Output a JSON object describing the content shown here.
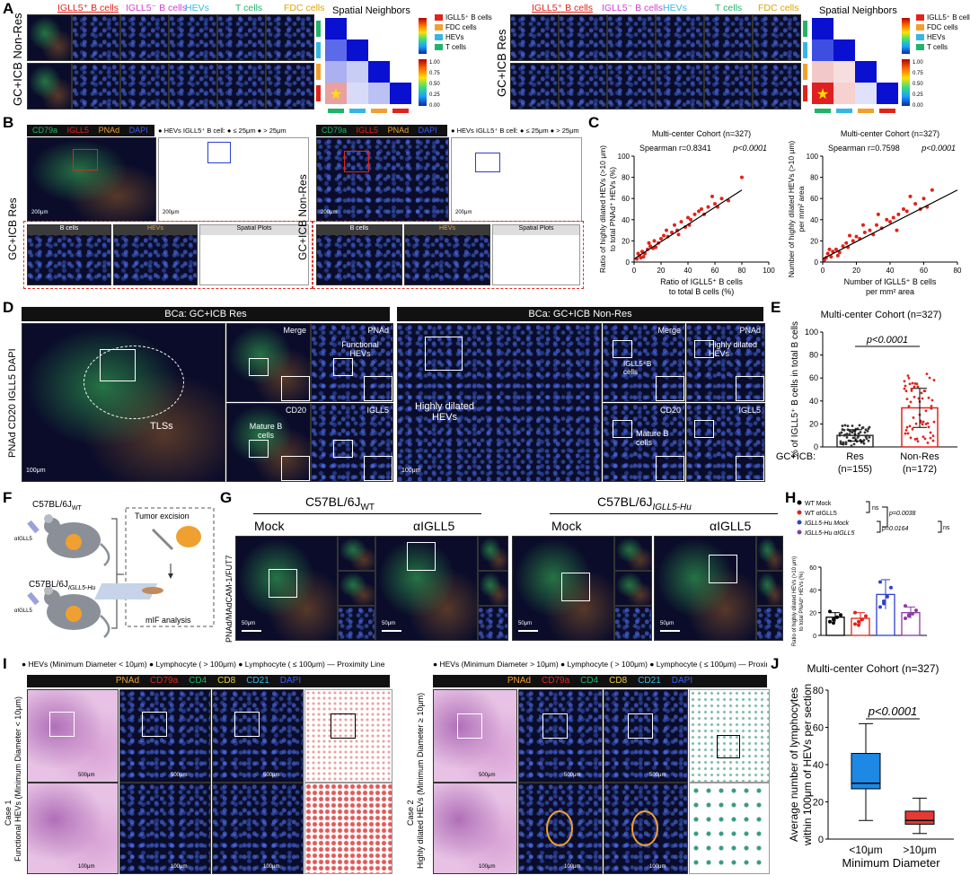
{
  "panels": {
    "A": {
      "label": "A",
      "row_label_left": "GC+ICB Non-Res",
      "row_label_right": "GC+ICB Res",
      "headers": [
        "IGLL5⁺ B cells",
        "IGLL5⁻ B cells",
        "HEVs",
        "T cells",
        "FDC cells"
      ],
      "header_colors": [
        "#e2231a",
        "#d63bd1",
        "#35b6e6",
        "#21b36a",
        "#e0a500"
      ],
      "heatmap_title": "Spatial Neighbors",
      "legend_left": [
        "IGLL5⁺ B cells",
        "FDC cells",
        "HEVs",
        "T cells"
      ],
      "legend_right": [
        "IGLL5⁺ B cells",
        "FDC cells",
        "HEVs",
        "T cells"
      ],
      "legend_colors": [
        "#e2231a",
        "#f0a030",
        "#35b6e6",
        "#21b36a"
      ],
      "scale_ticks": [
        "1.00",
        "0.75",
        "0.50",
        "0.25",
        "0.00"
      ]
    },
    "B": {
      "label": "B",
      "row_label_left": "GC+ICB Res",
      "row_label_right": "GC+ICB Non-Res",
      "markers": [
        "CD79a",
        "IGLL5",
        "PNAd",
        "DAPI"
      ],
      "marker_colors": [
        "#21b36a",
        "#e2231a",
        "#f0a030",
        "#3a5bff"
      ],
      "spatial_legend": "● HEVs   IGLL5⁺ B cell: ● ≤ 25μm ● > 25μm",
      "scale_big": "200μm",
      "sub_labels": [
        "B cells",
        "HEVs",
        "Spatial Plots"
      ],
      "scale_small": "50μm"
    },
    "C": {
      "label": "C",
      "plot1": {
        "title": "Multi-center Cohort (n=327)",
        "stat": "Spearman r=0.8341",
        "p": "p<0.0001",
        "ylabel_lines": [
          "Ratio of highly dilated HEVs (>10 μm)",
          "to total PNAd⁺ HEVs (%)"
        ],
        "xlabel_lines": [
          "Ratio of IGLL5⁺ B cells",
          "to total B cells (%)"
        ],
        "xticks": [
          "0",
          "20",
          "40",
          "60",
          "80",
          "100"
        ],
        "yticks": [
          "0",
          "20",
          "40",
          "60",
          "80",
          "100"
        ]
      },
      "plot2": {
        "title": "Multi-center Cohort (n=327)",
        "stat": "Spearman r=0.7598",
        "p": "p<0.0001",
        "ylabel_lines": [
          "Number of highly dilated HEVs (>10 μm)",
          "per mm² area"
        ],
        "xlabel_lines": [
          "Number of IGLL5⁺ B cells",
          "per mm² area"
        ],
        "xticks": [
          "0",
          "20",
          "40",
          "60",
          "80"
        ],
        "yticks": [
          "0",
          "20",
          "40",
          "60",
          "80",
          "100"
        ]
      }
    },
    "D": {
      "label": "D",
      "left_title": "BCa: GC+ICB Res",
      "right_title": "BCa: GC+ICB Non-Res",
      "side_label": "PNAd CD20 IGLL5 DAPI",
      "tls": "TLSs",
      "hevs": "Highly dilated HEVs",
      "res_labels": [
        "Merge",
        "PNAd",
        "Functional HEVs",
        "CD20",
        "IGLL5",
        "Mature B cells"
      ],
      "nonres_labels": [
        "Merge",
        "PNAd",
        "Highly dilated HEVs",
        "IGLL5⁺B cells",
        "CD20",
        "IGLL5",
        "Mature B cells"
      ],
      "scale": "100μm"
    },
    "E": {
      "label": "E",
      "title": "Multi-center Cohort (n=327)",
      "p": "p<0.0001",
      "ylabel": "% of IGLL5⁺ B cells in total B cells",
      "yticks": [
        "0",
        "20",
        "40",
        "60",
        "80",
        "100"
      ],
      "prefix": "GC+ICB:",
      "groups": [
        "Res",
        "Non-Res"
      ],
      "ns": [
        "(n=155)",
        "(n=172)"
      ]
    },
    "F": {
      "label": "F",
      "mouse1": "C57BL/6J",
      "mouse1_sub": "WT",
      "mouse2": "C57BL/6J",
      "mouse2_sub": "IGLL5-Hu",
      "drug": "αIGLL5",
      "step1": "Tumor excision",
      "step2": "mIF analysis"
    },
    "G": {
      "label": "G",
      "strain1": "C57BL/6J",
      "strain1_sub": "WT",
      "strain2": "C57BL/6J",
      "strain2_sub": "IGLL5-Hu",
      "conds": [
        "Mock",
        "αIGLL5",
        "Mock",
        "αIGLL5"
      ],
      "side_label": "PNAd/MAdCAM-1/FUT7",
      "scale": "50μm"
    },
    "H": {
      "label": "H",
      "legend": [
        "WT Mock",
        "WT αIGLL5",
        "IGLL5-Hu Mock",
        "IGLL5-Hu αIGLL5"
      ],
      "legend_colors": [
        "#000000",
        "#e2231a",
        "#3040d0",
        "#8a3aa8"
      ],
      "p1": "p=0.0038",
      "p2": "p=0.0164",
      "ns": "ns",
      "ylabel_lines": [
        "Ratio of highly dilated HEVs (>10 μm)",
        "to total PNAd⁺ HEVs (%)"
      ],
      "yticks": [
        "0",
        "20",
        "40",
        "60"
      ]
    },
    "I": {
      "label": "I",
      "legend_left": "● HEVs (Minimum Diameter < 10μm) ● Lymphocyte ( > 100μm) ● Lymphocyte ( ≤ 100μm)  — Proximity Line",
      "legend_right": "● HEVs (Minimum Diameter > 10μm) ● Lymphocyte ( > 100μm) ● Lymphocyte ( ≤ 100μm)  — Proximity Line",
      "markers": [
        "PNAd",
        "CD79a",
        "CD4",
        "CD8",
        "CD21",
        "DAPI"
      ],
      "marker_colors": [
        "#f0a030",
        "#e2231a",
        "#21b36a",
        "#e8d040",
        "#35b6e6",
        "#3a5bff"
      ],
      "case1": "Case 1",
      "case1_sub": "Functional HEVs (Minimum Diameter < 10μm)",
      "case2": "Case 2",
      "case2_sub": "Highly dilated HEVs (Minimum Diameter ≥ 10μm)",
      "scale_big": "500μm",
      "scale_small": "100μm"
    },
    "J": {
      "label": "J",
      "title": "Multi-center Cohort (n=327)",
      "p": "p<0.0001",
      "ylabel_lines": [
        "Average number of lymphocytes",
        "within 100μm of HEVs per section"
      ],
      "yticks": [
        "0",
        "20",
        "40",
        "60",
        "80"
      ],
      "categories": [
        "<10μm",
        ">10μm"
      ],
      "xlabel": "Minimum Diameter"
    }
  },
  "chart_data": [
    {
      "type": "scatter",
      "title": "Multi-center Cohort (n=327)",
      "xlabel": "Ratio of IGLL5⁺ B cells to total B cells (%)",
      "ylabel": "Ratio of highly dilated HEVs (>10 μm) to total PNAd⁺ HEVs (%)",
      "xlim": [
        0,
        100
      ],
      "ylim": [
        0,
        100
      ],
      "annotation": "Spearman r=0.8341 p<0.0001",
      "x": [
        2,
        4,
        5,
        6,
        8,
        10,
        12,
        14,
        15,
        18,
        20,
        22,
        25,
        28,
        30,
        32,
        35,
        38,
        40,
        42,
        45,
        48,
        50,
        55,
        60,
        65,
        70,
        80,
        3,
        7,
        11,
        16,
        24,
        33,
        41,
        52,
        58,
        62
      ],
      "y": [
        3,
        6,
        4,
        10,
        8,
        12,
        15,
        13,
        20,
        18,
        22,
        25,
        24,
        28,
        35,
        30,
        38,
        33,
        42,
        40,
        45,
        48,
        50,
        52,
        55,
        60,
        58,
        80,
        8,
        5,
        18,
        14,
        30,
        26,
        35,
        45,
        62,
        52
      ],
      "fit": {
        "x": [
          0,
          80
        ],
        "y": [
          3,
          68
        ]
      }
    },
    {
      "type": "scatter",
      "title": "Multi-center Cohort (n=327)",
      "xlabel": "Number of IGLL5⁺ B cells per mm² area",
      "ylabel": "Number of highly dilated HEVs (>10 μm) per mm² area",
      "xlim": [
        0,
        80
      ],
      "ylim": [
        0,
        100
      ],
      "annotation": "Spearman r=0.7598 p<0.0001",
      "x": [
        1,
        2,
        3,
        5,
        6,
        8,
        10,
        12,
        14,
        15,
        18,
        20,
        22,
        25,
        28,
        30,
        32,
        35,
        38,
        40,
        42,
        45,
        48,
        50,
        55,
        60,
        62,
        65,
        4,
        9,
        16,
        24,
        33,
        44,
        52,
        58
      ],
      "y": [
        2,
        4,
        8,
        5,
        10,
        12,
        9,
        15,
        18,
        14,
        20,
        24,
        22,
        28,
        30,
        26,
        35,
        32,
        40,
        38,
        42,
        45,
        50,
        48,
        55,
        60,
        52,
        68,
        12,
        6,
        25,
        35,
        45,
        30,
        62,
        50
      ],
      "fit": {
        "x": [
          0,
          80
        ],
        "y": [
          3,
          68
        ]
      }
    },
    {
      "type": "bar",
      "title": "Multi-center Cohort (n=327)",
      "categories": [
        "Res (n=155)",
        "Non-Res (n=172)"
      ],
      "values": [
        10,
        34
      ],
      "errors": [
        5,
        17
      ],
      "ylabel": "% of IGLL5⁺ B cells in total B cells",
      "ylim": [
        0,
        100
      ]
    },
    {
      "type": "bar",
      "categories": [
        "WT Mock",
        "WT αIGLL5",
        "IGLL5-Hu Mock",
        "IGLL5-Hu αIGLL5"
      ],
      "values": [
        16,
        15,
        36,
        20
      ],
      "errors": [
        4,
        5,
        13,
        5
      ],
      "points": [
        [
          12,
          14,
          16,
          18,
          21,
          11
        ],
        [
          10,
          12,
          14,
          17,
          20,
          9
        ],
        [
          25,
          30,
          34,
          42,
          47,
          28
        ],
        [
          15,
          17,
          19,
          22,
          26,
          18
        ]
      ],
      "ylim": [
        0,
        60
      ],
      "annotations": [
        "ns",
        "p=0.0038",
        "p=0.0164",
        "ns"
      ]
    },
    {
      "type": "box",
      "title": "Multi-center Cohort (n=327)",
      "categories": [
        "<10μm",
        ">10μm"
      ],
      "min": [
        10,
        3
      ],
      "q1": [
        27,
        8
      ],
      "median": [
        30,
        10
      ],
      "q3": [
        46,
        15
      ],
      "max": [
        62,
        22
      ],
      "xlabel": "Minimum Diameter",
      "ylabel": "Average number of lymphocytes within 100μm of HEVs per section",
      "ylim": [
        0,
        80
      ],
      "annotation": "p<0.0001"
    }
  ]
}
